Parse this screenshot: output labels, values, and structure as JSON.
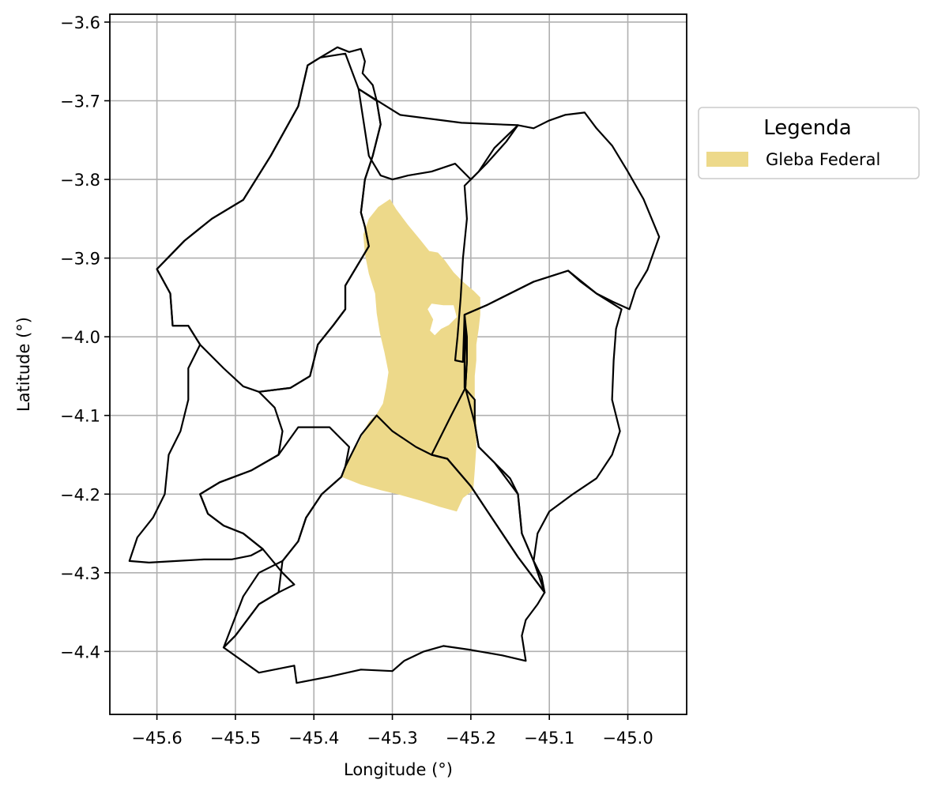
{
  "map": {
    "xlabel": "Longitude (°)",
    "ylabel": "Latitude (°)",
    "xlim": [
      -45.66,
      -44.925
    ],
    "ylim": [
      -4.48,
      -3.59
    ],
    "x_ticks": [
      -45.6,
      -45.5,
      -45.4,
      -45.3,
      -45.2,
      -45.1,
      -45.0
    ],
    "x_tick_labels": [
      "−45.6",
      "−45.5",
      "−45.4",
      "−45.3",
      "−45.2",
      "−45.1",
      "−45.0"
    ],
    "y_ticks": [
      -3.6,
      -3.7,
      -3.8,
      -3.9,
      -4.0,
      -4.1,
      -4.2,
      -4.3,
      -4.4
    ],
    "y_tick_labels": [
      "−3.6",
      "−3.7",
      "−3.8",
      "−3.9",
      "−4.0",
      "−4.1",
      "−4.2",
      "−4.3",
      "−4.4"
    ],
    "grid": true,
    "legend": {
      "title": "Legenda",
      "placement": "outside-upper-right",
      "items": [
        {
          "label": "Gleba Federal",
          "color": "#EDD98A"
        }
      ]
    },
    "colors": {
      "gleba_fill": "#EDD98A",
      "boundary_stroke": "#000000",
      "grid": "#b0b0b0"
    },
    "gleba_federal": [
      [
        [
          -45.303,
          -3.825
        ],
        [
          -45.295,
          -3.838
        ],
        [
          -45.28,
          -3.858
        ],
        [
          -45.265,
          -3.876
        ],
        [
          -45.253,
          -3.891
        ],
        [
          -45.242,
          -3.893
        ],
        [
          -45.233,
          -3.903
        ],
        [
          -45.222,
          -3.918
        ],
        [
          -45.21,
          -3.93
        ],
        [
          -45.196,
          -3.942
        ],
        [
          -45.188,
          -3.95
        ],
        [
          -45.188,
          -3.972
        ],
        [
          -45.19,
          -3.99
        ],
        [
          -45.193,
          -4.01
        ],
        [
          -45.193,
          -4.03
        ],
        [
          -45.195,
          -4.05
        ],
        [
          -45.195,
          -4.08
        ],
        [
          -45.193,
          -4.11
        ],
        [
          -45.193,
          -4.14
        ],
        [
          -45.195,
          -4.17
        ],
        [
          -45.197,
          -4.195
        ],
        [
          -45.21,
          -4.205
        ],
        [
          -45.218,
          -4.222
        ],
        [
          -45.24,
          -4.216
        ],
        [
          -45.265,
          -4.208
        ],
        [
          -45.29,
          -4.201
        ],
        [
          -45.315,
          -4.195
        ],
        [
          -45.34,
          -4.188
        ],
        [
          -45.365,
          -4.178
        ],
        [
          -45.36,
          -4.165
        ],
        [
          -45.352,
          -4.148
        ],
        [
          -45.343,
          -4.135
        ],
        [
          -45.337,
          -4.122
        ],
        [
          -45.33,
          -4.108
        ],
        [
          -45.32,
          -4.098
        ],
        [
          -45.312,
          -4.085
        ],
        [
          -45.308,
          -4.065
        ],
        [
          -45.305,
          -4.045
        ],
        [
          -45.31,
          -4.02
        ],
        [
          -45.316,
          -3.995
        ],
        [
          -45.32,
          -3.97
        ],
        [
          -45.322,
          -3.945
        ],
        [
          -45.33,
          -3.92
        ],
        [
          -45.335,
          -3.895
        ],
        [
          -45.337,
          -3.87
        ],
        [
          -45.33,
          -3.85
        ],
        [
          -45.318,
          -3.835
        ]
      ],
      [
        [
          -45.25,
          -3.958
        ],
        [
          -45.235,
          -3.96
        ],
        [
          -45.222,
          -3.96
        ],
        [
          -45.218,
          -3.975
        ],
        [
          -45.228,
          -3.985
        ],
        [
          -45.238,
          -3.99
        ],
        [
          -45.246,
          -3.998
        ],
        [
          -45.252,
          -3.992
        ],
        [
          -45.248,
          -3.978
        ],
        [
          -45.255,
          -3.965
        ]
      ]
    ],
    "municipality_boundaries": [
      [
        [
          -45.6,
          -3.914
        ],
        [
          -45.565,
          -3.878
        ],
        [
          -45.53,
          -3.85
        ],
        [
          -45.49,
          -3.826
        ],
        [
          -45.455,
          -3.77
        ],
        [
          -45.42,
          -3.707
        ],
        [
          -45.408,
          -3.655
        ],
        [
          -45.392,
          -3.645
        ],
        [
          -45.37,
          -3.632
        ],
        [
          -45.355,
          -3.638
        ],
        [
          -45.34,
          -3.634
        ],
        [
          -45.335,
          -3.65
        ],
        [
          -45.338,
          -3.665
        ],
        [
          -45.325,
          -3.68
        ],
        [
          -45.32,
          -3.7
        ],
        [
          -45.315,
          -3.73
        ],
        [
          -45.325,
          -3.77
        ],
        [
          -45.335,
          -3.8
        ],
        [
          -45.34,
          -3.842
        ],
        [
          -45.335,
          -3.86
        ],
        [
          -45.33,
          -3.885
        ],
        [
          -45.345,
          -3.91
        ],
        [
          -45.36,
          -3.935
        ],
        [
          -45.36,
          -3.965
        ],
        [
          -45.375,
          -3.985
        ],
        [
          -45.395,
          -4.01
        ],
        [
          -45.405,
          -4.05
        ],
        [
          -45.43,
          -4.065
        ],
        [
          -45.47,
          -4.07
        ],
        [
          -45.49,
          -4.063
        ],
        [
          -45.515,
          -4.04
        ],
        [
          -45.545,
          -4.01
        ],
        [
          -45.56,
          -3.986
        ],
        [
          -45.58,
          -3.986
        ],
        [
          -45.583,
          -3.945
        ],
        [
          -45.6,
          -3.914
        ]
      ],
      [
        [
          -45.343,
          -3.685
        ],
        [
          -45.29,
          -3.718
        ],
        [
          -45.212,
          -3.728
        ],
        [
          -45.14,
          -3.731
        ],
        [
          -45.155,
          -3.752
        ],
        [
          -45.18,
          -3.78
        ],
        [
          -45.2,
          -3.8
        ],
        [
          -45.22,
          -3.78
        ],
        [
          -45.25,
          -3.79
        ],
        [
          -45.28,
          -3.795
        ],
        [
          -45.3,
          -3.8
        ],
        [
          -45.315,
          -3.795
        ],
        [
          -45.33,
          -3.77
        ],
        [
          -45.343,
          -3.685
        ]
      ],
      [
        [
          -45.208,
          -3.808
        ],
        [
          -45.205,
          -3.85
        ],
        [
          -45.21,
          -3.9
        ],
        [
          -45.213,
          -3.95
        ],
        [
          -45.217,
          -4.0
        ],
        [
          -45.22,
          -4.03
        ],
        [
          -45.21,
          -4.032
        ],
        [
          -45.208,
          -3.972
        ],
        [
          -45.18,
          -3.96
        ],
        [
          -45.12,
          -3.93
        ],
        [
          -45.076,
          -3.916
        ],
        [
          -45.06,
          -3.93
        ],
        [
          -45.04,
          -3.945
        ],
        [
          -45.02,
          -3.955
        ],
        [
          -44.998,
          -3.965
        ],
        [
          -44.99,
          -3.94
        ],
        [
          -44.975,
          -3.915
        ],
        [
          -44.96,
          -3.873
        ],
        [
          -44.98,
          -3.825
        ],
        [
          -45.0,
          -3.79
        ],
        [
          -45.02,
          -3.757
        ],
        [
          -45.04,
          -3.735
        ],
        [
          -45.055,
          -3.715
        ],
        [
          -45.08,
          -3.718
        ],
        [
          -45.1,
          -3.725
        ],
        [
          -45.12,
          -3.735
        ],
        [
          -45.14,
          -3.731
        ],
        [
          -45.17,
          -3.76
        ],
        [
          -45.19,
          -3.79
        ],
        [
          -45.208,
          -3.808
        ]
      ],
      [
        [
          -45.208,
          -3.972
        ],
        [
          -45.205,
          -4.0
        ],
        [
          -45.205,
          -4.03
        ],
        [
          -45.207,
          -4.065
        ],
        [
          -45.225,
          -4.1
        ],
        [
          -45.25,
          -4.15
        ],
        [
          -45.23,
          -4.155
        ],
        [
          -45.2,
          -4.19
        ],
        [
          -45.18,
          -4.22
        ],
        [
          -45.14,
          -4.28
        ],
        [
          -45.106,
          -4.325
        ],
        [
          -45.11,
          -4.305
        ],
        [
          -45.12,
          -4.285
        ],
        [
          -45.135,
          -4.25
        ],
        [
          -45.14,
          -4.2
        ],
        [
          -45.15,
          -4.18
        ],
        [
          -45.17,
          -4.16
        ],
        [
          -45.19,
          -4.14
        ],
        [
          -45.195,
          -4.11
        ],
        [
          -45.195,
          -4.08
        ],
        [
          -45.208,
          -4.065
        ],
        [
          -45.208,
          -3.972
        ]
      ],
      [
        [
          -45.106,
          -4.325
        ],
        [
          -45.11,
          -4.305
        ],
        [
          -45.12,
          -4.285
        ],
        [
          -45.115,
          -4.25
        ],
        [
          -45.1,
          -4.222
        ],
        [
          -45.07,
          -4.2
        ],
        [
          -45.04,
          -4.18
        ],
        [
          -45.02,
          -4.15
        ],
        [
          -45.01,
          -4.12
        ],
        [
          -45.02,
          -4.08
        ],
        [
          -45.018,
          -4.03
        ],
        [
          -45.015,
          -3.99
        ],
        [
          -45.008,
          -3.965
        ],
        [
          -45.04,
          -3.945
        ],
        [
          -45.076,
          -3.916
        ],
        [
          -45.12,
          -3.93
        ],
        [
          -45.18,
          -3.96
        ],
        [
          -45.208,
          -3.972
        ],
        [
          -45.205,
          -4.03
        ],
        [
          -45.207,
          -4.065
        ],
        [
          -45.195,
          -4.11
        ],
        [
          -45.19,
          -4.14
        ],
        [
          -45.17,
          -4.16
        ],
        [
          -45.14,
          -4.2
        ],
        [
          -45.135,
          -4.25
        ],
        [
          -45.12,
          -4.285
        ],
        [
          -45.106,
          -4.325
        ]
      ],
      [
        [
          -45.515,
          -4.395
        ],
        [
          -45.5,
          -4.38
        ],
        [
          -45.485,
          -4.36
        ],
        [
          -45.47,
          -4.34
        ],
        [
          -45.445,
          -4.325
        ],
        [
          -45.425,
          -4.315
        ],
        [
          -45.44,
          -4.3
        ],
        [
          -45.465,
          -4.27
        ],
        [
          -45.49,
          -4.25
        ],
        [
          -45.515,
          -4.24
        ],
        [
          -45.535,
          -4.225
        ],
        [
          -45.545,
          -4.2
        ],
        [
          -45.52,
          -4.185
        ],
        [
          -45.48,
          -4.17
        ],
        [
          -45.445,
          -4.15
        ],
        [
          -45.42,
          -4.115
        ],
        [
          -45.38,
          -4.115
        ],
        [
          -45.355,
          -4.14
        ],
        [
          -45.36,
          -4.165
        ],
        [
          -45.365,
          -4.178
        ],
        [
          -45.39,
          -4.2
        ],
        [
          -45.41,
          -4.23
        ],
        [
          -45.42,
          -4.26
        ],
        [
          -45.44,
          -4.285
        ],
        [
          -45.47,
          -4.3
        ],
        [
          -45.49,
          -4.33
        ],
        [
          -45.515,
          -4.395
        ]
      ],
      [
        [
          -45.6,
          -3.914
        ],
        [
          -45.583,
          -3.945
        ],
        [
          -45.58,
          -3.986
        ],
        [
          -45.56,
          -3.986
        ],
        [
          -45.545,
          -4.01
        ],
        [
          -45.56,
          -4.04
        ],
        [
          -45.56,
          -4.08
        ],
        [
          -45.57,
          -4.12
        ],
        [
          -45.585,
          -4.15
        ],
        [
          -45.59,
          -4.2
        ],
        [
          -45.605,
          -4.23
        ],
        [
          -45.625,
          -4.255
        ],
        [
          -45.635,
          -4.285
        ],
        [
          -45.61,
          -4.287
        ],
        [
          -45.575,
          -4.285
        ],
        [
          -45.54,
          -4.283
        ],
        [
          -45.505,
          -4.283
        ],
        [
          -45.48,
          -4.278
        ],
        [
          -45.465,
          -4.27
        ],
        [
          -45.49,
          -4.25
        ],
        [
          -45.515,
          -4.24
        ],
        [
          -45.535,
          -4.225
        ],
        [
          -45.545,
          -4.2
        ],
        [
          -45.52,
          -4.185
        ],
        [
          -45.48,
          -4.17
        ],
        [
          -45.445,
          -4.15
        ],
        [
          -45.44,
          -4.12
        ],
        [
          -45.45,
          -4.09
        ],
        [
          -45.47,
          -4.07
        ],
        [
          -45.43,
          -4.065
        ],
        [
          -45.405,
          -4.05
        ],
        [
          -45.395,
          -4.01
        ],
        [
          -45.375,
          -3.985
        ],
        [
          -45.36,
          -3.965
        ],
        [
          -45.36,
          -3.935
        ],
        [
          -45.345,
          -3.91
        ],
        [
          -45.33,
          -3.885
        ],
        [
          -45.335,
          -3.86
        ],
        [
          -45.34,
          -3.842
        ],
        [
          -45.335,
          -3.8
        ],
        [
          -45.325,
          -3.77
        ],
        [
          -45.315,
          -3.73
        ],
        [
          -45.32,
          -3.7
        ],
        [
          -45.343,
          -3.685
        ],
        [
          -45.36,
          -3.64
        ],
        [
          -45.392,
          -3.645
        ],
        [
          -45.408,
          -3.655
        ],
        [
          -45.42,
          -3.707
        ],
        [
          -45.455,
          -3.77
        ],
        [
          -45.49,
          -3.826
        ],
        [
          -45.53,
          -3.85
        ],
        [
          -45.565,
          -3.878
        ],
        [
          -45.6,
          -3.914
        ]
      ],
      [
        [
          -45.515,
          -4.395
        ],
        [
          -45.47,
          -4.427
        ],
        [
          -45.425,
          -4.418
        ],
        [
          -45.422,
          -4.44
        ],
        [
          -45.38,
          -4.432
        ],
        [
          -45.34,
          -4.423
        ],
        [
          -45.3,
          -4.425
        ],
        [
          -45.285,
          -4.412
        ],
        [
          -45.26,
          -4.4
        ],
        [
          -45.235,
          -4.393
        ],
        [
          -45.2,
          -4.398
        ],
        [
          -45.16,
          -4.405
        ],
        [
          -45.13,
          -4.412
        ],
        [
          -45.135,
          -4.38
        ],
        [
          -45.13,
          -4.36
        ],
        [
          -45.115,
          -4.34
        ],
        [
          -45.106,
          -4.325
        ],
        [
          -45.14,
          -4.28
        ],
        [
          -45.18,
          -4.22
        ],
        [
          -45.2,
          -4.19
        ],
        [
          -45.23,
          -4.155
        ],
        [
          -45.25,
          -4.15
        ],
        [
          -45.27,
          -4.14
        ],
        [
          -45.3,
          -4.12
        ],
        [
          -45.32,
          -4.1
        ],
        [
          -45.34,
          -4.125
        ],
        [
          -45.36,
          -4.165
        ],
        [
          -45.365,
          -4.178
        ],
        [
          -45.39,
          -4.2
        ],
        [
          -45.41,
          -4.23
        ],
        [
          -45.42,
          -4.26
        ],
        [
          -45.44,
          -4.285
        ],
        [
          -45.445,
          -4.325
        ],
        [
          -45.47,
          -4.34
        ],
        [
          -45.485,
          -4.36
        ],
        [
          -45.5,
          -4.38
        ],
        [
          -45.515,
          -4.395
        ]
      ]
    ]
  }
}
